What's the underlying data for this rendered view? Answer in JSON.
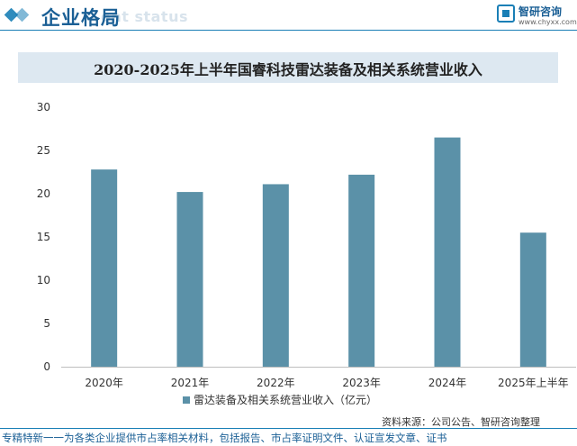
{
  "header": {
    "section_title": "企业格局",
    "section_subtitle": "ent status"
  },
  "logo": {
    "name": "智研咨询",
    "url": "www.chyxx.com"
  },
  "chart_data": {
    "type": "bar",
    "title": "2020-2025年上半年国睿科技雷达装备及相关系统营业收入",
    "categories": [
      "2020年",
      "2021年",
      "2022年",
      "2023年",
      "2024年",
      "2025年上半年"
    ],
    "series": [
      {
        "name": "雷达装备及相关系统营业收入（亿元）",
        "values": [
          22.8,
          20.2,
          21.1,
          22.2,
          26.5,
          15.5
        ]
      }
    ],
    "ylim": [
      0,
      30
    ],
    "yticks": [
      "0",
      "5",
      "10",
      "15",
      "20",
      "25",
      "30"
    ],
    "grid": false,
    "legend": "bottom",
    "bar_color": "#5b91a8"
  },
  "footer": {
    "source": "资料来源：公司公告、智研咨询整理",
    "slogan": "专精特新一一为各类企业提供市占率相关材料，包括报告、市占率证明文件、认证宣发文章、证书"
  }
}
